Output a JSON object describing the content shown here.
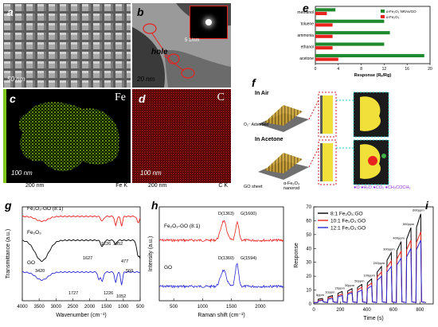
{
  "panels": {
    "a": {
      "label": "a",
      "scale": "50 nm"
    },
    "b": {
      "label": "b",
      "scale": "20 nm",
      "annotation": "hole",
      "inset_scale": "5 1/nm"
    },
    "c": {
      "label": "c",
      "element": "Fe",
      "scale": "100 nm",
      "bar_scale": "200 nm",
      "bar_element": "Fe K"
    },
    "d": {
      "label": "d",
      "element": "C",
      "scale": "100 nm",
      "bar_scale": "200 nm",
      "bar_element": "C K"
    },
    "e": {
      "label": "e"
    },
    "f": {
      "label": "f",
      "in_air": "In Air",
      "in_acetone": "In Acetone",
      "adsorbed": "O₂⁻ Adsorbed",
      "legend_go": "GO sheet",
      "legend_nanorod": "α-Fe₂O₃ nanorod",
      "legend_species": "●O  ●H₂O  ●CO₂  ●CH₃COCH₃"
    },
    "g": {
      "label": "g"
    },
    "h": {
      "label": "h"
    },
    "i": {
      "label": "i"
    }
  },
  "colors": {
    "red": "#e8231e",
    "blue": "#2b2bd6",
    "green": "#1f8a2d",
    "black": "#000000"
  },
  "chart_data": [
    {
      "id": "e",
      "type": "bar",
      "orientation": "horizontal",
      "xlabel": "Response (Rₐ/Rg)",
      "xlim": [
        0,
        20
      ],
      "xticks": [
        "0",
        "4",
        "8",
        "12",
        "16",
        "20"
      ],
      "categories": [
        "methanol",
        "toluene",
        "ammonia",
        "ethanol",
        "acetone"
      ],
      "legend": [
        "α-Fe₂O₃ NRAs/GO",
        "α-Fe₂O₃"
      ],
      "series": [
        {
          "name": "α-Fe₂O₃ NRAs/GO",
          "color": "#1f8a2d",
          "values": [
            3.5,
            12,
            13,
            12,
            19
          ]
        },
        {
          "name": "α-Fe₂O₃",
          "color": "#e8231e",
          "values": [
            2,
            3,
            3,
            3,
            4
          ]
        }
      ]
    },
    {
      "id": "g",
      "type": "line",
      "xlabel": "Wavenumber (cm⁻¹)",
      "ylabel": "Transmittance (a.u.)",
      "xlim": [
        4000,
        500
      ],
      "xticks": [
        "4000",
        "3500",
        "3000",
        "2500",
        "2000",
        "1500",
        "1000",
        "500"
      ],
      "series": [
        {
          "name": "Fe₂O₃-GO (8:1)",
          "color": "#e8231e"
        },
        {
          "name": "Fe₂O₃",
          "color": "#000000"
        },
        {
          "name": "GO",
          "color": "#2b2bd6"
        }
      ],
      "annotations": [
        "3420",
        "1627",
        "1226",
        "1052",
        "477",
        "560",
        "1727",
        "1226",
        "1052"
      ]
    },
    {
      "id": "h",
      "type": "line",
      "xlabel": "Raman shift (cm⁻¹)",
      "ylabel": "Intensity (a.u.)",
      "xlim": [
        250,
        2400
      ],
      "xticks": [
        "500",
        "1000",
        "1500",
        "2000"
      ],
      "series": [
        {
          "name": "Fe₂O₃-GO (8:1)",
          "color": "#e8231e"
        },
        {
          "name": "GO",
          "color": "#2b2bd6"
        }
      ],
      "annotations": [
        "D(1363)",
        "G(1600)",
        "D(1360)",
        "G(1594)"
      ]
    },
    {
      "id": "i",
      "type": "line",
      "xlabel": "Time (s)",
      "ylabel": "Response",
      "xlim": [
        0,
        900
      ],
      "ylim": [
        0,
        70
      ],
      "xticks": [
        "0",
        "200",
        "400",
        "600",
        "800"
      ],
      "yticks": [
        "0",
        "10",
        "20",
        "30",
        "40",
        "50",
        "60",
        "70"
      ],
      "x": [
        5,
        10,
        20,
        30,
        50,
        100,
        200,
        300,
        400,
        500,
        600
      ],
      "x_label": "concentration (ppm)",
      "concentration_labels": [
        "5ppm",
        "10ppm",
        "20ppm",
        "30ppm",
        "50ppm",
        "100ppm",
        "200ppm",
        "300ppm",
        "400ppm",
        "500ppm",
        "600ppm"
      ],
      "series": [
        {
          "name": "8:1  Fe₂O₃:GO",
          "color": "#000000",
          "values": [
            4,
            6,
            9,
            11,
            14,
            18,
            27,
            37,
            45,
            55,
            65
          ]
        },
        {
          "name": "10:1  Fe₂O₃:GO",
          "color": "#e8231e",
          "values": [
            3,
            5,
            7,
            9,
            12,
            15,
            23,
            31,
            38,
            46,
            52
          ]
        },
        {
          "name": "12:1  Fe₂O₃:GO",
          "color": "#2b2bd6",
          "values": [
            2.5,
            4,
            6,
            8,
            10,
            13,
            20,
            27,
            33,
            40,
            46
          ]
        }
      ]
    }
  ]
}
